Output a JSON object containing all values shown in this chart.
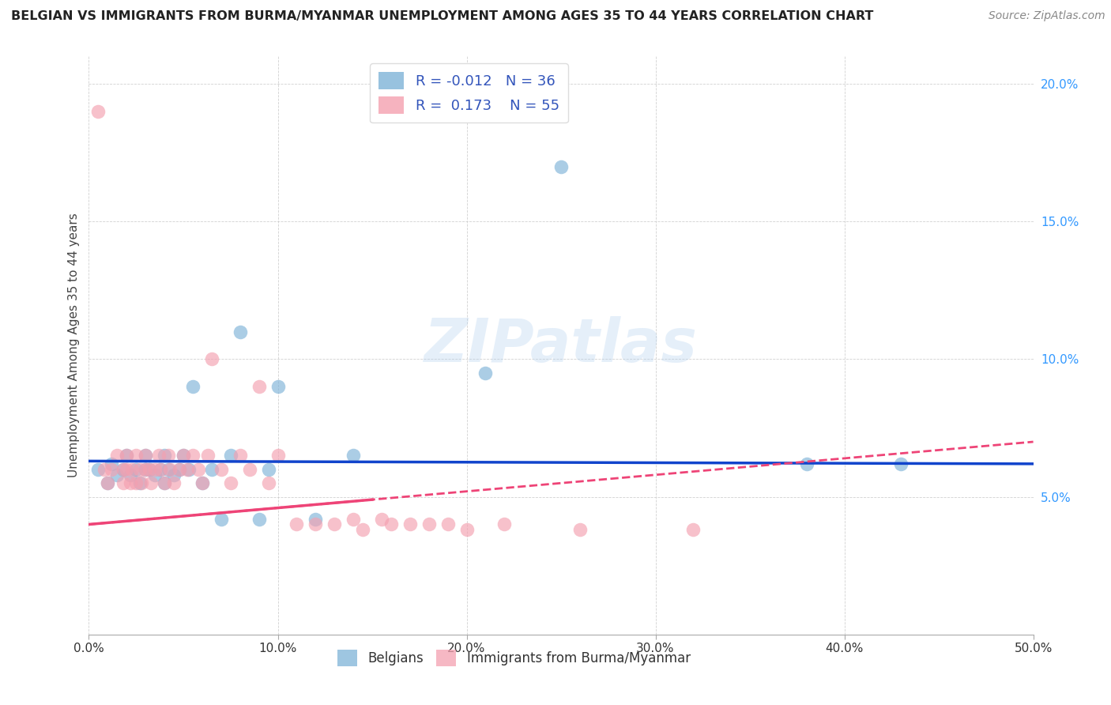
{
  "title": "BELGIAN VS IMMIGRANTS FROM BURMA/MYANMAR UNEMPLOYMENT AMONG AGES 35 TO 44 YEARS CORRELATION CHART",
  "source": "Source: ZipAtlas.com",
  "ylabel": "Unemployment Among Ages 35 to 44 years",
  "xlim": [
    0.0,
    0.5
  ],
  "ylim": [
    0.0,
    0.21
  ],
  "xticks": [
    0.0,
    0.1,
    0.2,
    0.3,
    0.4,
    0.5
  ],
  "xticklabels": [
    "0.0%",
    "10.0%",
    "20.0%",
    "30.0%",
    "40.0%",
    "50.0%"
  ],
  "yticks": [
    0.05,
    0.1,
    0.15,
    0.2
  ],
  "yticklabels": [
    "5.0%",
    "10.0%",
    "15.0%",
    "20.0%"
  ],
  "belgian_color": "#7EB3D8",
  "myanmar_color": "#F4A0B0",
  "belgian_line_color": "#1144CC",
  "myanmar_line_color": "#EE4477",
  "legend_r_belgian": "-0.012",
  "legend_n_belgian": "36",
  "legend_r_myanmar": "0.173",
  "legend_n_myanmar": "55",
  "belgians_x": [
    0.005,
    0.01,
    0.012,
    0.015,
    0.018,
    0.02,
    0.022,
    0.025,
    0.027,
    0.03,
    0.03,
    0.032,
    0.035,
    0.038,
    0.04,
    0.04,
    0.042,
    0.045,
    0.048,
    0.05,
    0.053,
    0.055,
    0.06,
    0.065,
    0.07,
    0.075,
    0.08,
    0.09,
    0.095,
    0.1,
    0.12,
    0.14,
    0.21,
    0.25,
    0.38,
    0.43
  ],
  "belgians_y": [
    0.06,
    0.055,
    0.062,
    0.058,
    0.06,
    0.065,
    0.058,
    0.06,
    0.055,
    0.06,
    0.065,
    0.06,
    0.058,
    0.06,
    0.055,
    0.065,
    0.06,
    0.058,
    0.06,
    0.065,
    0.06,
    0.09,
    0.055,
    0.06,
    0.042,
    0.065,
    0.11,
    0.042,
    0.06,
    0.09,
    0.042,
    0.065,
    0.095,
    0.17,
    0.062,
    0.062
  ],
  "myanmar_x": [
    0.005,
    0.008,
    0.01,
    0.012,
    0.015,
    0.018,
    0.018,
    0.02,
    0.02,
    0.022,
    0.023,
    0.025,
    0.025,
    0.027,
    0.028,
    0.03,
    0.03,
    0.032,
    0.033,
    0.035,
    0.037,
    0.038,
    0.04,
    0.042,
    0.043,
    0.045,
    0.048,
    0.05,
    0.052,
    0.055,
    0.058,
    0.06,
    0.063,
    0.065,
    0.07,
    0.075,
    0.08,
    0.085,
    0.09,
    0.095,
    0.1,
    0.11,
    0.12,
    0.13,
    0.14,
    0.145,
    0.155,
    0.16,
    0.17,
    0.18,
    0.19,
    0.2,
    0.22,
    0.26,
    0.32
  ],
  "myanmar_y": [
    0.19,
    0.06,
    0.055,
    0.06,
    0.065,
    0.055,
    0.06,
    0.06,
    0.065,
    0.055,
    0.06,
    0.055,
    0.065,
    0.06,
    0.055,
    0.06,
    0.065,
    0.06,
    0.055,
    0.06,
    0.065,
    0.06,
    0.055,
    0.065,
    0.06,
    0.055,
    0.06,
    0.065,
    0.06,
    0.065,
    0.06,
    0.055,
    0.065,
    0.1,
    0.06,
    0.055,
    0.065,
    0.06,
    0.09,
    0.055,
    0.065,
    0.04,
    0.04,
    0.04,
    0.042,
    0.038,
    0.042,
    0.04,
    0.04,
    0.04,
    0.04,
    0.038,
    0.04,
    0.038,
    0.038
  ],
  "belgian_line_slope": -0.002,
  "belgian_line_intercept": 0.063,
  "myanmar_line_slope": 0.06,
  "myanmar_line_intercept": 0.04
}
